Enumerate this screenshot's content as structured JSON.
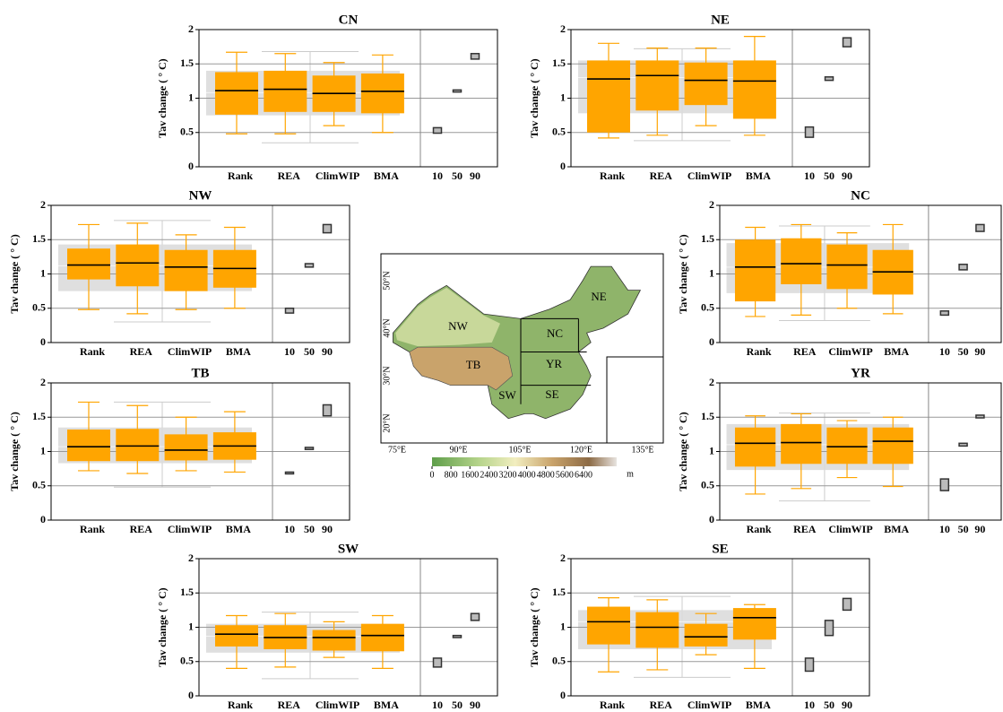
{
  "chart_data": [
    {
      "type": "box",
      "title": "CN",
      "y_label": "Tav change ( ° C)",
      "categories": [
        "Rank",
        "REA",
        "ClimWIP",
        "BMA"
      ],
      "color": "#ffa500",
      "whisker_low": [
        0.48,
        0.48,
        0.6,
        0.5
      ],
      "q1": [
        0.76,
        0.8,
        0.8,
        0.78
      ],
      "median": [
        1.11,
        1.13,
        1.07,
        1.1
      ],
      "q3": [
        1.38,
        1.4,
        1.33,
        1.36
      ],
      "whisker_high": [
        1.67,
        1.65,
        1.52,
        1.63
      ],
      "reference": {
        "color": "#d9d9d9",
        "whisker_low": 0.35,
        "q1": 0.75,
        "median": 1.08,
        "q3": 1.4,
        "whisker_high": 1.68
      },
      "percentiles": {
        "categories": [
          "10",
          "50",
          "90"
        ],
        "low": [
          0.49,
          1.09,
          1.57
        ],
        "high": [
          0.57,
          1.12,
          1.65
        ]
      },
      "ylim": [
        0,
        2
      ],
      "yticks": [
        0,
        0.5,
        1,
        1.5,
        2
      ],
      "grid": true
    },
    {
      "type": "box",
      "title": "NE",
      "y_label": "Tav change ( ° C)",
      "categories": [
        "Rank",
        "REA",
        "ClimWIP",
        "BMA"
      ],
      "color": "#ffa500",
      "whisker_low": [
        0.42,
        0.46,
        0.6,
        0.46
      ],
      "q1": [
        0.5,
        0.82,
        0.9,
        0.7
      ],
      "median": [
        1.28,
        1.33,
        1.26,
        1.25
      ],
      "q3": [
        1.55,
        1.55,
        1.52,
        1.55
      ],
      "whisker_high": [
        1.8,
        1.73,
        1.73,
        1.9
      ],
      "reference": {
        "color": "#d9d9d9",
        "whisker_low": 0.38,
        "q1": 0.78,
        "median": 1.3,
        "q3": 1.55,
        "whisker_high": 1.72
      },
      "percentiles": {
        "categories": [
          "10",
          "50",
          "90"
        ],
        "low": [
          0.43,
          1.26,
          1.75
        ],
        "high": [
          0.58,
          1.31,
          1.88
        ]
      },
      "ylim": [
        0,
        2
      ],
      "yticks": [
        0,
        0.5,
        1,
        1.5,
        2
      ],
      "grid": true
    },
    {
      "type": "box",
      "title": "NW",
      "y_label": "Tav change ( ° C)",
      "categories": [
        "Rank",
        "REA",
        "ClimWIP",
        "BMA"
      ],
      "color": "#ffa500",
      "whisker_low": [
        0.48,
        0.42,
        0.48,
        0.5
      ],
      "q1": [
        0.92,
        0.82,
        0.75,
        0.8
      ],
      "median": [
        1.13,
        1.16,
        1.1,
        1.08
      ],
      "q3": [
        1.37,
        1.43,
        1.35,
        1.35
      ],
      "whisker_high": [
        1.72,
        1.74,
        1.57,
        1.68
      ],
      "reference": {
        "color": "#d9d9d9",
        "whisker_low": 0.3,
        "q1": 0.75,
        "median": 1.12,
        "q3": 1.43,
        "whisker_high": 1.78
      },
      "percentiles": {
        "categories": [
          "10",
          "50",
          "90"
        ],
        "low": [
          0.43,
          1.1,
          1.6
        ],
        "high": [
          0.5,
          1.15,
          1.72
        ]
      },
      "ylim": [
        0,
        2
      ],
      "yticks": [
        0,
        0.5,
        1,
        1.5,
        2
      ],
      "grid": true
    },
    {
      "type": "box",
      "title": "NC",
      "y_label": "Tav change ( ° C)",
      "categories": [
        "Rank",
        "REA",
        "ClimWIP",
        "BMA"
      ],
      "color": "#ffa500",
      "whisker_low": [
        0.38,
        0.4,
        0.5,
        0.42
      ],
      "q1": [
        0.6,
        0.85,
        0.78,
        0.7
      ],
      "median": [
        1.1,
        1.15,
        1.13,
        1.03
      ],
      "q3": [
        1.5,
        1.52,
        1.43,
        1.35
      ],
      "whisker_high": [
        1.68,
        1.72,
        1.6,
        1.72
      ],
      "reference": {
        "color": "#d9d9d9",
        "whisker_low": 0.32,
        "q1": 0.72,
        "median": 1.1,
        "q3": 1.45,
        "whisker_high": 1.7
      },
      "percentiles": {
        "categories": [
          "10",
          "50",
          "90"
        ],
        "low": [
          0.4,
          1.06,
          1.62
        ],
        "high": [
          0.46,
          1.14,
          1.72
        ]
      },
      "ylim": [
        0,
        2
      ],
      "yticks": [
        0,
        0.5,
        1,
        1.5,
        2
      ],
      "grid": true
    },
    {
      "type": "box",
      "title": "TB",
      "y_label": "Tav change ( ° C)",
      "categories": [
        "Rank",
        "REA",
        "ClimWIP",
        "BMA"
      ],
      "color": "#ffa500",
      "whisker_low": [
        0.72,
        0.68,
        0.72,
        0.7
      ],
      "q1": [
        0.86,
        0.86,
        0.87,
        0.88
      ],
      "median": [
        1.07,
        1.08,
        1.02,
        1.08
      ],
      "q3": [
        1.32,
        1.33,
        1.25,
        1.28
      ],
      "whisker_high": [
        1.72,
        1.67,
        1.5,
        1.58
      ],
      "reference": {
        "color": "#d9d9d9",
        "whisker_low": 0.48,
        "q1": 0.83,
        "median": 1.07,
        "q3": 1.35,
        "whisker_high": 1.72
      },
      "percentiles": {
        "categories": [
          "10",
          "50",
          "90"
        ],
        "low": [
          0.68,
          1.03,
          1.52
        ],
        "high": [
          0.7,
          1.06,
          1.68
        ]
      },
      "ylim": [
        0,
        2
      ],
      "yticks": [
        0,
        0.5,
        1,
        1.5,
        2
      ],
      "grid": true
    },
    {
      "type": "box",
      "title": "YR",
      "y_label": "Tav change ( ° C)",
      "categories": [
        "Rank",
        "REA",
        "ClimWIP",
        "BMA"
      ],
      "color": "#ffa500",
      "whisker_low": [
        0.38,
        0.46,
        0.62,
        0.49
      ],
      "q1": [
        0.78,
        0.82,
        0.82,
        0.82
      ],
      "median": [
        1.12,
        1.13,
        1.07,
        1.15
      ],
      "q3": [
        1.35,
        1.4,
        1.35,
        1.35
      ],
      "whisker_high": [
        1.52,
        1.55,
        1.45,
        1.5
      ],
      "reference": {
        "color": "#d9d9d9",
        "whisker_low": 0.28,
        "q1": 0.73,
        "median": 1.1,
        "q3": 1.4,
        "whisker_high": 1.56
      },
      "percentiles": {
        "categories": [
          "10",
          "50",
          "90"
        ],
        "low": [
          0.43,
          1.08,
          1.49
        ],
        "high": [
          0.6,
          1.12,
          1.53
        ]
      },
      "ylim": [
        0,
        2
      ],
      "yticks": [
        0,
        0.5,
        1,
        1.5,
        2
      ],
      "grid": true
    },
    {
      "type": "box",
      "title": "SW",
      "y_label": "Tav change ( ° C)",
      "categories": [
        "Rank",
        "REA",
        "ClimWIP",
        "BMA"
      ],
      "color": "#ffa500",
      "whisker_low": [
        0.4,
        0.42,
        0.56,
        0.4
      ],
      "q1": [
        0.72,
        0.68,
        0.66,
        0.65
      ],
      "median": [
        0.9,
        0.85,
        0.85,
        0.88
      ],
      "q3": [
        1.03,
        1.03,
        0.96,
        1.05
      ],
      "whisker_high": [
        1.17,
        1.2,
        1.08,
        1.17
      ],
      "reference": {
        "color": "#d9d9d9",
        "whisker_low": 0.25,
        "q1": 0.63,
        "median": 0.87,
        "q3": 1.05,
        "whisker_high": 1.22
      },
      "percentiles": {
        "categories": [
          "10",
          "50",
          "90"
        ],
        "low": [
          0.42,
          0.85,
          1.1
        ],
        "high": [
          0.55,
          0.88,
          1.2
        ]
      },
      "ylim": [
        0,
        2
      ],
      "yticks": [
        0,
        0.5,
        1,
        1.5,
        2
      ],
      "grid": true
    },
    {
      "type": "box",
      "title": "SE",
      "y_label": "Tav change ( ° C)",
      "categories": [
        "Rank",
        "REA",
        "ClimWIP",
        "BMA"
      ],
      "color": "#ffa500",
      "whisker_low": [
        0.35,
        0.38,
        0.6,
        0.4
      ],
      "q1": [
        0.75,
        0.7,
        0.72,
        0.82
      ],
      "median": [
        1.08,
        1.0,
        0.86,
        1.14
      ],
      "q3": [
        1.3,
        1.22,
        1.05,
        1.28
      ],
      "whisker_high": [
        1.43,
        1.4,
        1.2,
        1.33
      ],
      "reference": {
        "color": "#d9d9d9",
        "whisker_low": 0.27,
        "q1": 0.68,
        "median": 1.08,
        "q3": 1.25,
        "whisker_high": 1.45
      },
      "percentiles": {
        "categories": [
          "10",
          "50",
          "90"
        ],
        "low": [
          0.36,
          0.88,
          1.25
        ],
        "high": [
          0.55,
          1.1,
          1.42
        ]
      },
      "ylim": [
        0,
        2
      ],
      "yticks": [
        0,
        0.5,
        1,
        1.5,
        2
      ],
      "grid": true
    }
  ],
  "map": {
    "region_labels": [
      "NW",
      "NE",
      "NC",
      "YR",
      "TB",
      "SW",
      "SE"
    ],
    "lat_labels": [
      "50°N",
      "40°N",
      "30°N",
      "20°N"
    ],
    "lon_labels": [
      "75°E",
      "90°E",
      "105°E",
      "120°E",
      "135°E"
    ],
    "colorbar_ticks": [
      0,
      800,
      1600,
      2400,
      3200,
      4000,
      4800,
      5600,
      6400
    ],
    "colorbar_lim": [
      0,
      7800
    ],
    "colorbar_unit": "m"
  }
}
